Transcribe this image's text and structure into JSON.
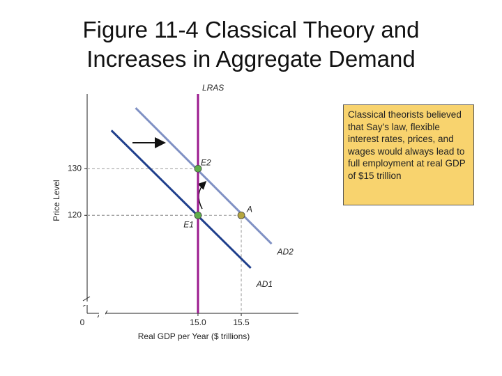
{
  "chart_data": {
    "type": "line",
    "title": "Figure 11-4  Classical Theory and Increases in Aggregate Demand",
    "annotation": "Classical theorists believed that Say’s law, flexible interest rates, prices, and wages would always lead to full employment at real GDP of $15 trillion",
    "x_label": "Real GDP per Year ($ trillions)",
    "y_label": "Price Level",
    "origin_label": "0",
    "xlim": [
      13.72,
      16.16
    ],
    "ylim": [
      99,
      146
    ],
    "xticks": [
      {
        "value": 15,
        "label": "15.0"
      },
      15.5
    ],
    "yticks": [
      120,
      130
    ],
    "series": [
      {
        "name": "LRAS",
        "color": "#9b1a8e",
        "x": [
          15.0,
          15.0
        ],
        "values": [
          99,
          146
        ]
      },
      {
        "name": "AD1",
        "color": "#1f3f8c",
        "x": [
          14.0,
          15.61
        ],
        "values": [
          138.2,
          108.7
        ]
      },
      {
        "name": "AD2",
        "color": "#8091c4",
        "x": [
          14.28,
          15.85
        ],
        "values": [
          143.0,
          113.9
        ]
      }
    ],
    "points": [
      {
        "name": "E2",
        "x": 15.0,
        "value": 130,
        "color": "#5fae4a"
      },
      {
        "name": "E1",
        "x": 15.0,
        "value": 120,
        "color": "#5fae4a"
      },
      {
        "name": "A",
        "x": 15.5,
        "value": 120,
        "color": "#b5a640"
      }
    ]
  }
}
